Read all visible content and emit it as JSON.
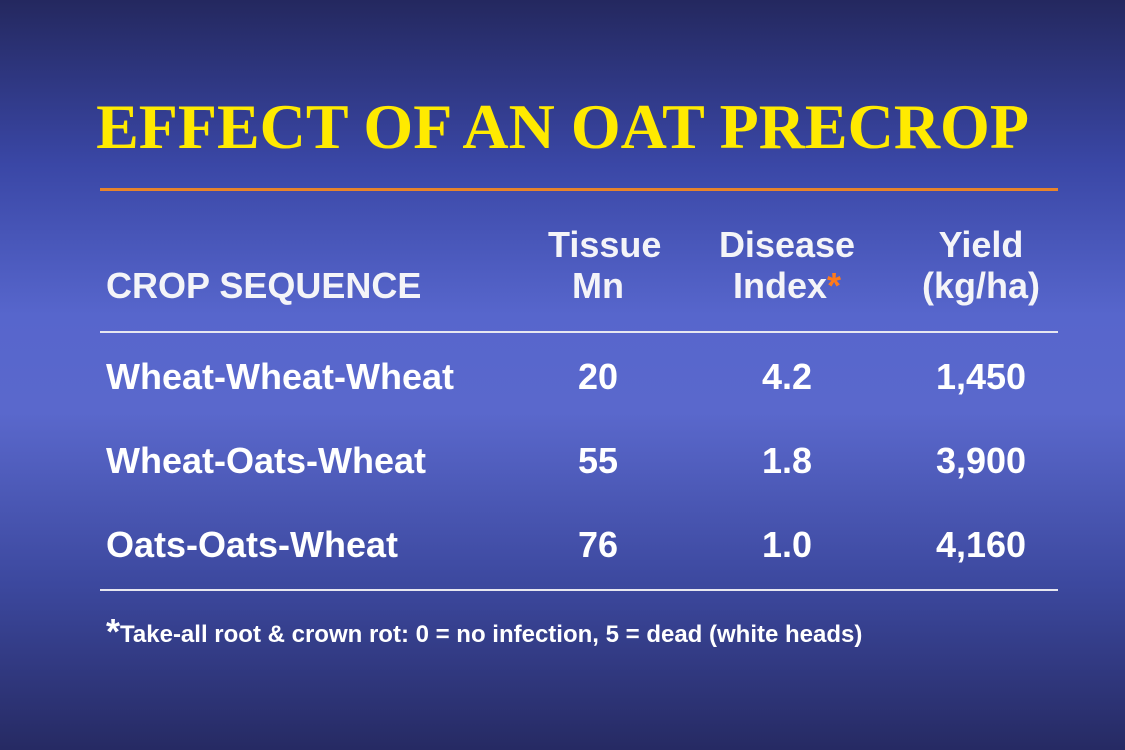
{
  "title": "EFFECT OF AN OAT PRECROP",
  "table": {
    "headers": {
      "crop_sequence": "CROP SEQUENCE",
      "tissue_mn_line1": "Tissue",
      "tissue_mn_line2": "Mn",
      "disease_index_line1": "Disease",
      "disease_index_line2": "Index",
      "disease_index_marker": "*",
      "yield_line1": "Yield",
      "yield_line2": "(kg/ha)"
    },
    "rows": [
      {
        "crop_sequence": "Wheat-Wheat-Wheat",
        "tissue_mn": "20",
        "disease_index": "4.2",
        "yield": "1,450"
      },
      {
        "crop_sequence": "Wheat-Oats-Wheat",
        "tissue_mn": "55",
        "disease_index": "1.8",
        "yield": "3,900"
      },
      {
        "crop_sequence": "Oats-Oats-Wheat",
        "tissue_mn": "76",
        "disease_index": "1.0",
        "yield": "4,160"
      }
    ]
  },
  "footnote": {
    "marker": "*",
    "text": "Take-all root & crown rot: 0 = no infection, 5 = dead (white heads)"
  },
  "colors": {
    "title": "#ffea00",
    "accent_rule": "#e8842a",
    "marker": "#ff7a1a",
    "text": "#ffffff",
    "background_center": "#5a68cc",
    "background_edge": "#24285f"
  }
}
